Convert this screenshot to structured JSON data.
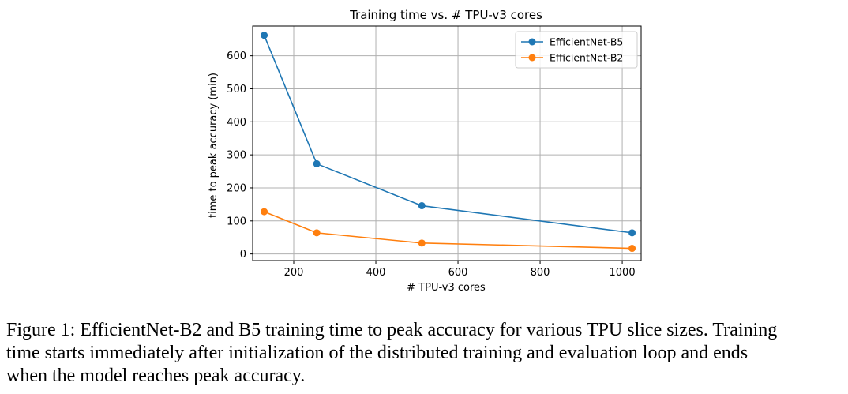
{
  "chart_data": {
    "type": "line",
    "title": "Training time vs. # TPU-v3 cores",
    "xlabel": "# TPU-v3 cores",
    "ylabel": "time to peak accuracy (min)",
    "xlim": [
      100,
      1046
    ],
    "ylim": [
      -20,
      690
    ],
    "xticks": [
      200,
      400,
      600,
      800,
      1000
    ],
    "yticks": [
      0,
      100,
      200,
      300,
      400,
      500,
      600
    ],
    "grid": true,
    "legend_position": "top-right",
    "x": [
      128,
      256,
      512,
      1024
    ],
    "series": [
      {
        "name": "EfficientNet-B5",
        "color": "#1f77b4",
        "values": [
          662,
          273,
          146,
          64
        ]
      },
      {
        "name": "EfficientNet-B2",
        "color": "#ff7f0e",
        "values": [
          128,
          64,
          33,
          17
        ]
      }
    ]
  },
  "caption": {
    "lines": [
      "Figure 1: EfficientNet-B2 and B5 training time to peak accuracy for various TPU slice sizes. Training",
      "time starts immediately after initialization of the distributed training and evaluation loop and ends",
      "when the model reaches peak accuracy."
    ]
  }
}
